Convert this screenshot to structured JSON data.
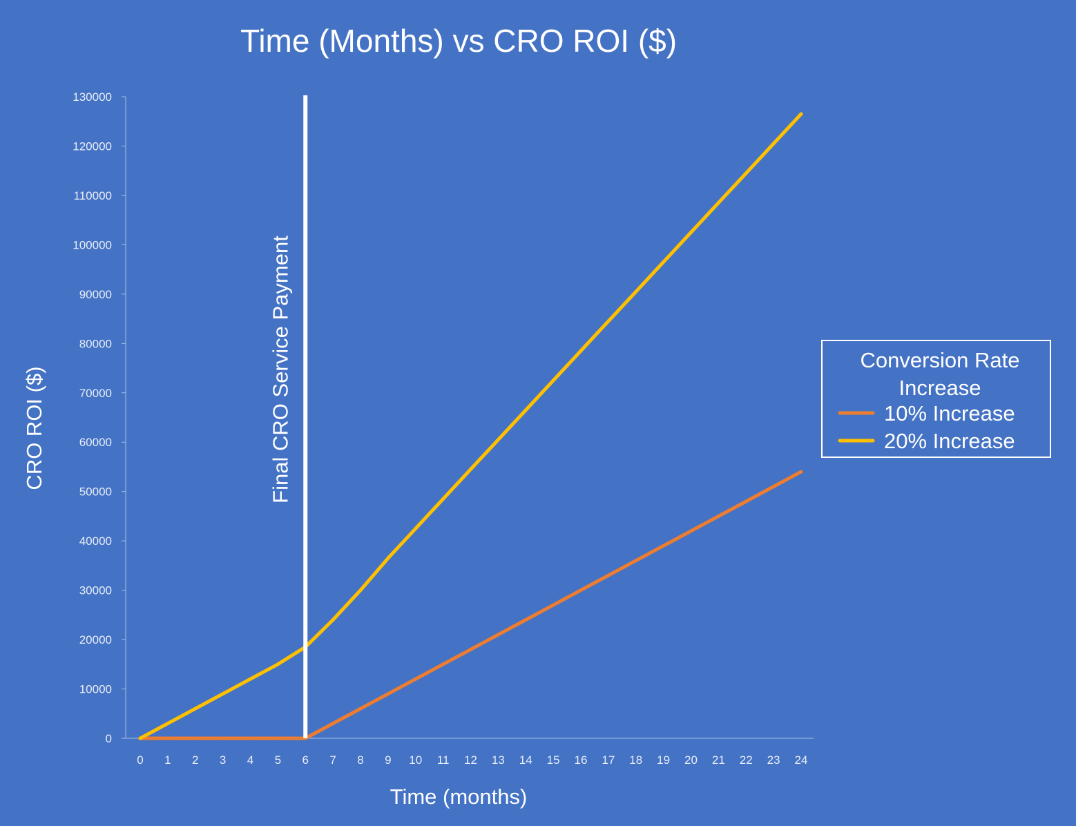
{
  "chart_data": {
    "type": "line",
    "title": "Time (Months) vs CRO ROI ($)",
    "xlabel": "Time (months)",
    "ylabel": "CRO ROI ($)",
    "x": [
      0,
      1,
      2,
      3,
      4,
      5,
      6,
      7,
      8,
      9,
      10,
      11,
      12,
      13,
      14,
      15,
      16,
      17,
      18,
      19,
      20,
      21,
      22,
      23,
      24
    ],
    "ylim": [
      0,
      130000
    ],
    "yticks": [
      0,
      10000,
      20000,
      30000,
      40000,
      50000,
      60000,
      70000,
      80000,
      90000,
      100000,
      110000,
      120000,
      130000
    ],
    "xtick_labels": [
      "0",
      "1",
      "2",
      "3",
      "4",
      "5",
      "6",
      "7",
      "8",
      "9",
      "10",
      "11",
      "12",
      "13",
      "14",
      "15",
      "16",
      "17",
      "18",
      "19",
      "20",
      "21",
      "22",
      "23",
      "24"
    ],
    "ytick_labels": [
      "0",
      "10000",
      "20000",
      "30000",
      "40000",
      "50000",
      "60000",
      "70000",
      "80000",
      "90000",
      "100000",
      "110000",
      "120000",
      "130000"
    ],
    "grid": false,
    "legend": {
      "title": "Conversion Rate Increase",
      "placement": "right"
    },
    "series": [
      {
        "name": "10% Increase",
        "color": "#ED7D31",
        "values": [
          0,
          0,
          0,
          0,
          0,
          0,
          0,
          3000,
          6000,
          9000,
          12000,
          15000,
          18000,
          21000,
          24000,
          27000,
          30000,
          33000,
          36000,
          39000,
          42000,
          45000,
          48000,
          51000,
          54000
        ]
      },
      {
        "name": "20% Increase",
        "color": "#FFC000",
        "values": [
          0,
          3000,
          6000,
          9000,
          12000,
          15000,
          18500,
          24000,
          30000,
          36500,
          42500,
          48500,
          54500,
          60500,
          66500,
          72500,
          78500,
          84500,
          90500,
          96500,
          102500,
          108500,
          114500,
          120500,
          126500
        ]
      }
    ],
    "annotation": {
      "text": "Final CRO Service Payment",
      "x": 6,
      "color": "#FFFFFF"
    },
    "colors": {
      "background": "#4472C4",
      "axis": "#A9C1E8",
      "text": "#FFFFFF",
      "tick_text": "#E8EEF8"
    }
  }
}
